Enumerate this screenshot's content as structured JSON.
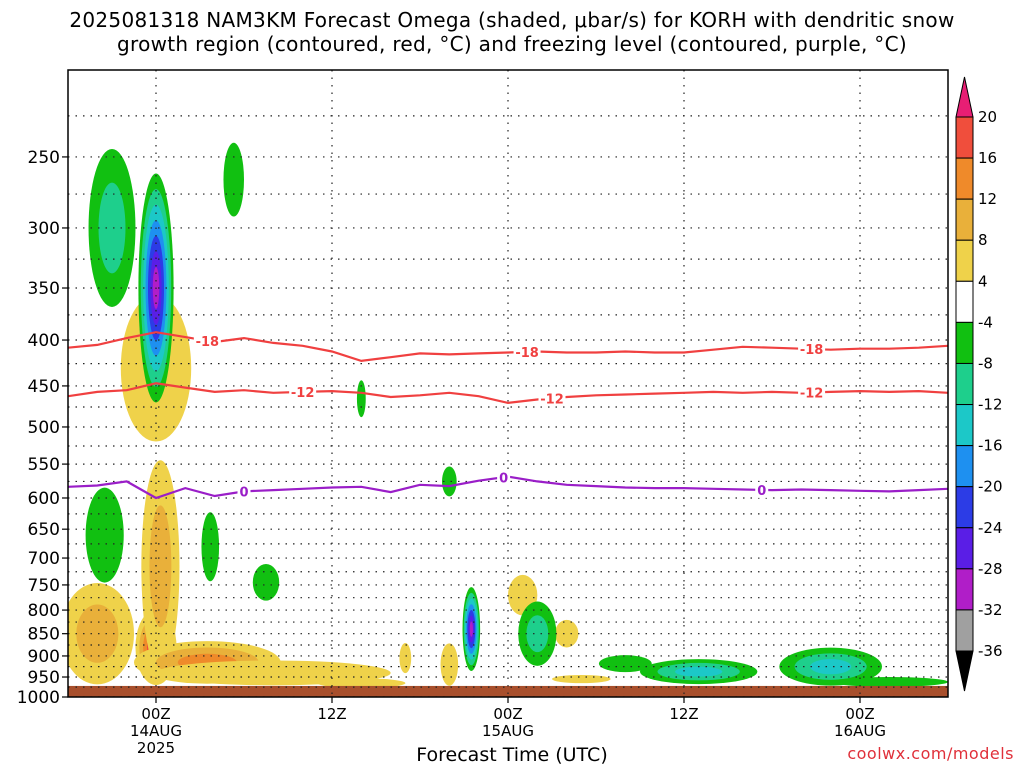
{
  "title": {
    "line1": "2025081318 NAM3KM Forecast Omega (shaded, μbar/s) for KORH with dendritic snow",
    "line2": "growth region (contoured, red, °C) and freezing level (contoured, purple, °C)"
  },
  "watermark": "coolwx.com/models",
  "chart_data": {
    "type": "heatmap",
    "xlabel": "Forecast Time (UTC)",
    "ylabel": "",
    "x_range_hours": [
      -6,
      54
    ],
    "x_ticks": [
      {
        "hour": 0,
        "label": "00Z",
        "sub1": "14AUG",
        "sub2": "2025"
      },
      {
        "hour": 12,
        "label": "12Z",
        "sub1": "",
        "sub2": ""
      },
      {
        "hour": 24,
        "label": "00Z",
        "sub1": "15AUG",
        "sub2": ""
      },
      {
        "hour": 36,
        "label": "12Z",
        "sub1": "",
        "sub2": ""
      },
      {
        "hour": 48,
        "label": "00Z",
        "sub1": "16AUG",
        "sub2": ""
      }
    ],
    "y_scale": "log-pressure",
    "y_range_hpa": [
      200,
      1000
    ],
    "y_ticks": [
      250,
      300,
      350,
      400,
      450,
      500,
      550,
      600,
      650,
      700,
      750,
      800,
      850,
      900,
      950,
      1000
    ],
    "y_grid_levels": [
      225,
      250,
      275,
      300,
      325,
      350,
      375,
      400,
      425,
      450,
      475,
      500,
      525,
      550,
      575,
      600,
      625,
      650,
      675,
      700,
      725,
      750,
      775,
      800,
      825,
      850,
      875,
      900,
      925,
      950,
      975,
      1000
    ],
    "grid": true,
    "colorbar": {
      "labels": [
        "20",
        "16",
        "12",
        "8",
        "4",
        "-4",
        "-8",
        "-12",
        "-16",
        "-20",
        "-24",
        "-28",
        "-32",
        "-36"
      ],
      "colors": [
        "#e81e74",
        "#f04e3c",
        "#ef8a2a",
        "#e9b03a",
        "#efd24a",
        "#ffffff",
        "#11c011",
        "#1ecf8c",
        "#1cc8c8",
        "#1e90f0",
        "#2c3ce6",
        "#5a1ee6",
        "#b01ec8",
        "#a0a0a0",
        "#000000"
      ]
    },
    "contours": [
      {
        "name": "dendritic growth -18",
        "label": "-18",
        "color": "#f04040",
        "points": [
          [
            -6,
            408
          ],
          [
            -4,
            405
          ],
          [
            -2,
            398
          ],
          [
            0,
            392
          ],
          [
            2,
            397
          ],
          [
            4,
            402
          ],
          [
            6,
            398
          ],
          [
            8,
            403
          ],
          [
            10,
            406
          ],
          [
            12,
            412
          ],
          [
            14,
            422
          ],
          [
            16,
            418
          ],
          [
            18,
            414
          ],
          [
            20,
            415
          ],
          [
            22,
            414
          ],
          [
            24,
            413
          ],
          [
            26,
            412
          ],
          [
            28,
            413
          ],
          [
            30,
            413
          ],
          [
            32,
            412
          ],
          [
            34,
            413
          ],
          [
            36,
            413
          ],
          [
            38,
            410
          ],
          [
            40,
            407
          ],
          [
            42,
            408
          ],
          [
            44,
            409
          ],
          [
            46,
            410
          ],
          [
            48,
            409
          ],
          [
            50,
            409
          ],
          [
            52,
            408
          ],
          [
            54,
            406
          ]
        ],
        "label_hours": [
          3.5,
          25.3,
          44.7
        ]
      },
      {
        "name": "dendritic growth -12",
        "label": "-12",
        "color": "#f04040",
        "points": [
          [
            -6,
            462
          ],
          [
            -4,
            457
          ],
          [
            -2,
            455
          ],
          [
            0,
            447
          ],
          [
            2,
            452
          ],
          [
            4,
            457
          ],
          [
            6,
            455
          ],
          [
            8,
            458
          ],
          [
            10,
            457
          ],
          [
            12,
            456
          ],
          [
            14,
            458
          ],
          [
            16,
            463
          ],
          [
            18,
            461
          ],
          [
            20,
            458
          ],
          [
            22,
            462
          ],
          [
            24,
            470
          ],
          [
            26,
            466
          ],
          [
            28,
            463
          ],
          [
            30,
            461
          ],
          [
            32,
            460
          ],
          [
            34,
            459
          ],
          [
            36,
            458
          ],
          [
            38,
            457
          ],
          [
            40,
            458
          ],
          [
            42,
            457
          ],
          [
            44,
            458
          ],
          [
            46,
            457
          ],
          [
            48,
            456
          ],
          [
            50,
            457
          ],
          [
            52,
            456
          ],
          [
            54,
            458
          ]
        ],
        "label_hours": [
          10,
          27,
          44.7
        ]
      },
      {
        "name": "freezing level 0",
        "label": "0",
        "color": "#9a1ec8",
        "points": [
          [
            -6,
            583
          ],
          [
            -4,
            581
          ],
          [
            -2,
            575
          ],
          [
            0,
            600
          ],
          [
            2,
            585
          ],
          [
            4,
            597
          ],
          [
            6,
            590
          ],
          [
            8,
            588
          ],
          [
            10,
            586
          ],
          [
            12,
            584
          ],
          [
            14,
            583
          ],
          [
            16,
            591
          ],
          [
            18,
            580
          ],
          [
            20,
            582
          ],
          [
            22,
            574
          ],
          [
            24,
            568
          ],
          [
            26,
            575
          ],
          [
            28,
            580
          ],
          [
            30,
            582
          ],
          [
            32,
            584
          ],
          [
            34,
            585
          ],
          [
            36,
            585
          ],
          [
            38,
            586
          ],
          [
            40,
            587
          ],
          [
            42,
            588
          ],
          [
            44,
            587
          ],
          [
            46,
            588
          ],
          [
            48,
            589
          ],
          [
            50,
            590
          ],
          [
            52,
            588
          ],
          [
            54,
            586
          ]
        ],
        "label_hours": [
          6,
          23.7,
          41.3
        ]
      }
    ],
    "omega_blobs": [
      {
        "t": 0,
        "p": 880,
        "dt": 1.4,
        "dp": 85,
        "levels": [
          4,
          8,
          12,
          16,
          20
        ]
      },
      {
        "t": 0.3,
        "p": 715,
        "dt": 1.3,
        "dp": 190,
        "levels": [
          4,
          8
        ]
      },
      {
        "t": 3.5,
        "p": 915,
        "dt": 5,
        "dp": 50,
        "levels": [
          4,
          8,
          12
        ]
      },
      {
        "t": 8,
        "p": 940,
        "dt": 8,
        "dp": 30,
        "levels": [
          4
        ]
      },
      {
        "t": -4,
        "p": 850,
        "dt": 2.5,
        "dp": 110,
        "levels": [
          4,
          8
        ]
      },
      {
        "t": 0,
        "p": 430,
        "dt": 2.4,
        "dp": 80,
        "levels": [
          4
        ]
      },
      {
        "t": 14,
        "p": 965,
        "dt": 3,
        "dp": 12,
        "levels": [
          4
        ]
      },
      {
        "t": 29,
        "p": 955,
        "dt": 2,
        "dp": 10,
        "levels": [
          4
        ]
      },
      {
        "t": 25,
        "p": 770,
        "dt": 1,
        "dp": 40,
        "levels": [
          4
        ]
      },
      {
        "t": 20,
        "p": 920,
        "dt": 0.6,
        "dp": 50,
        "levels": [
          4
        ]
      },
      {
        "t": 17,
        "p": 905,
        "dt": 0.4,
        "dp": 35,
        "levels": [
          4
        ]
      },
      {
        "t": 28,
        "p": 850,
        "dt": 0.8,
        "dp": 30,
        "levels": [
          4
        ]
      },
      {
        "t": 0,
        "p": 350,
        "dt": 1.2,
        "dp": 100,
        "levels": [
          -4,
          -8,
          -12,
          -16,
          -20,
          -24,
          -28
        ]
      },
      {
        "t": -3,
        "p": 300,
        "dt": 1.6,
        "dp": 60,
        "levels": [
          -4,
          -8
        ]
      },
      {
        "t": 5.3,
        "p": 265,
        "dt": 0.7,
        "dp": 25,
        "levels": [
          -4
        ]
      },
      {
        "t": -3.5,
        "p": 660,
        "dt": 1.3,
        "dp": 80,
        "levels": [
          -4
        ]
      },
      {
        "t": 3.7,
        "p": 680,
        "dt": 0.6,
        "dp": 60,
        "levels": [
          -4
        ]
      },
      {
        "t": 7.5,
        "p": 745,
        "dt": 0.9,
        "dp": 35,
        "levels": [
          -4
        ]
      },
      {
        "t": 21.5,
        "p": 840,
        "dt": 0.6,
        "dp": 90,
        "levels": [
          -4,
          -8,
          -12,
          -16,
          -20,
          -24,
          -28
        ]
      },
      {
        "t": 26,
        "p": 850,
        "dt": 1.3,
        "dp": 70,
        "levels": [
          -4,
          -8
        ]
      },
      {
        "t": 20,
        "p": 575,
        "dt": 0.5,
        "dp": 22,
        "levels": [
          -4
        ]
      },
      {
        "t": 14,
        "p": 465,
        "dt": 0.3,
        "dp": 22,
        "levels": [
          -4
        ]
      },
      {
        "t": 37,
        "p": 937,
        "dt": 4,
        "dp": 30,
        "levels": [
          -4,
          -8,
          -12
        ]
      },
      {
        "t": 46,
        "p": 925,
        "dt": 3.5,
        "dp": 45,
        "levels": [
          -4,
          -8,
          -12
        ]
      },
      {
        "t": 50,
        "p": 962,
        "dt": 4,
        "dp": 12,
        "levels": [
          -4
        ]
      },
      {
        "t": 32,
        "p": 918,
        "dt": 1.8,
        "dp": 20,
        "levels": [
          -4
        ]
      }
    ],
    "surface_color": "#a84f2c"
  }
}
